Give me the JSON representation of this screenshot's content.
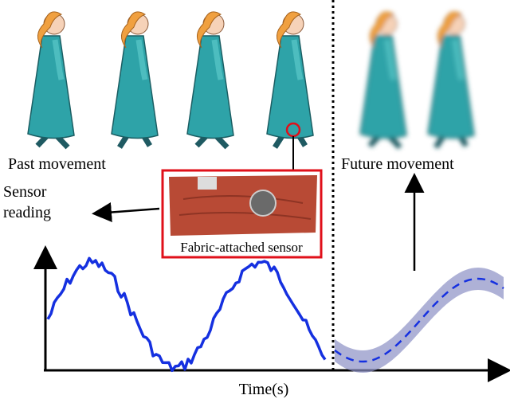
{
  "labels": {
    "past": "Past movement",
    "future": "Future movement",
    "sensor": "Sensor reading",
    "fabric": "Fabric-attached sensor",
    "time": "Time(s)"
  }
}
